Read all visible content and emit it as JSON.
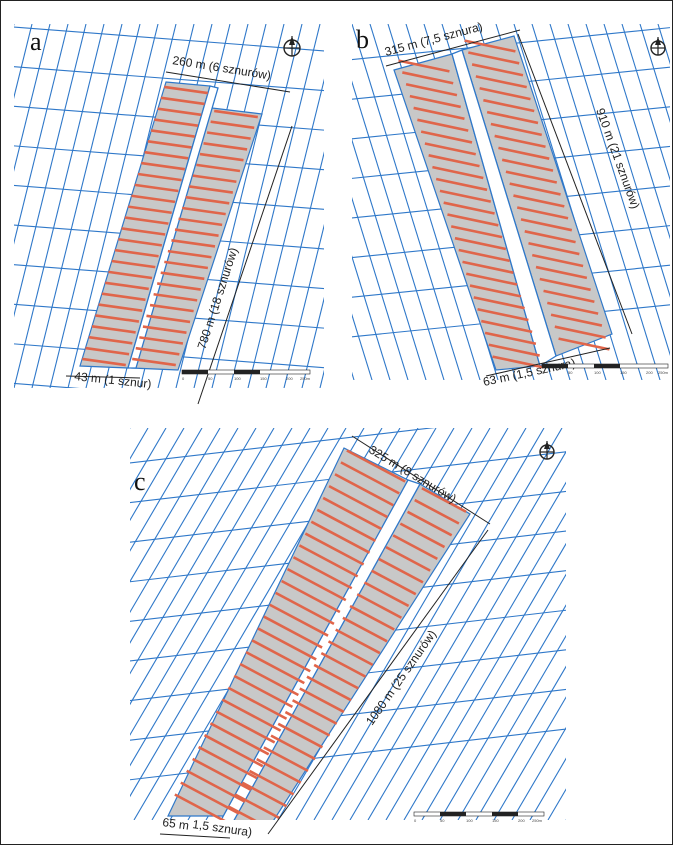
{
  "colors": {
    "parcel": "#2f78c9",
    "village": "#c8c8c8",
    "strip": "#e0654a",
    "dimension": "#222222"
  },
  "panels": [
    {
      "letter": "a",
      "width_label": "260 m (6 sznurów)",
      "length_label": "780 m (18 sznurów)",
      "bottom_label": "43 m (1 sznur)",
      "compass_icon": "north-arrow-icon",
      "scale_ticks": [
        "0",
        "50",
        "100",
        "150",
        "200",
        "250m"
      ]
    },
    {
      "letter": "b",
      "width_label": "315 m (7,5 sznura)",
      "length_label": "910 m (21 sznurów)",
      "bottom_label": "63 m (1,5 sznura)",
      "compass_icon": "north-arrow-icon",
      "scale_ticks": [
        "0",
        "50",
        "100",
        "150",
        "200",
        "250m"
      ]
    },
    {
      "letter": "c",
      "width_label": "325 m (8 sznurów)",
      "length_label": "1080 m (25 sznurów)",
      "bottom_label_1": "65 m",
      "bottom_label_2": "1,5 sznura)",
      "compass_icon": "north-arrow-icon",
      "scale_ticks": [
        "0",
        "50",
        "100",
        "150",
        "200",
        "250m"
      ]
    }
  ]
}
